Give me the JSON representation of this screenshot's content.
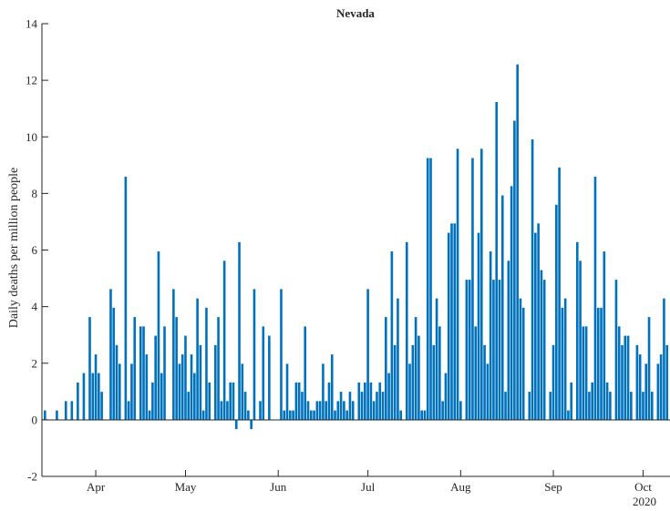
{
  "chart_data": {
    "type": "bar",
    "title": "Nevada",
    "xlabel": "",
    "ylabel": "Daily deaths per million people",
    "ylim": [
      -2,
      14
    ],
    "yticks": [
      -2,
      0,
      2,
      4,
      6,
      8,
      10,
      12,
      14
    ],
    "x_start": "2020-03-14",
    "x_end": "2020-10-10",
    "xticks": [
      {
        "date": "2020-04-01",
        "label": "Apr"
      },
      {
        "date": "2020-05-01",
        "label": "May"
      },
      {
        "date": "2020-06-01",
        "label": "Jun"
      },
      {
        "date": "2020-07-01",
        "label": "Jul"
      },
      {
        "date": "2020-08-01",
        "label": "Aug"
      },
      {
        "date": "2020-09-01",
        "label": "Sep"
      },
      {
        "date": "2020-10-01",
        "label": "Oct"
      }
    ],
    "year_label": "2020",
    "grid": false,
    "bar_color": "#0072BD",
    "first_date": "2020-03-15",
    "values": [
      0.33,
      0,
      0,
      0,
      0.33,
      0,
      0,
      0.66,
      0,
      0.66,
      0,
      1.32,
      0,
      1.65,
      0,
      3.63,
      1.65,
      2.31,
      1.65,
      0.99,
      0,
      0,
      4.62,
      3.96,
      2.64,
      1.98,
      0,
      8.59,
      0.66,
      1.98,
      3.63,
      0,
      3.3,
      3.3,
      2.31,
      0.33,
      1.32,
      2.97,
      5.95,
      1.65,
      3.3,
      0,
      0,
      4.62,
      3.63,
      1.98,
      2.31,
      2.97,
      0.99,
      2.31,
      1.65,
      4.29,
      2.64,
      0.33,
      3.96,
      1.32,
      0,
      2.64,
      3.63,
      0.66,
      5.62,
      0.66,
      1.32,
      1.32,
      -0.33,
      6.28,
      1.98,
      0.99,
      0.33,
      -0.33,
      4.62,
      0,
      0.66,
      3.3,
      0,
      2.97,
      0,
      0,
      0,
      4.62,
      0.33,
      1.98,
      0.33,
      0.33,
      1.32,
      1.32,
      0.99,
      3.3,
      0.66,
      0.33,
      0.33,
      0.66,
      0.66,
      1.98,
      0.66,
      1.32,
      2.31,
      0.33,
      0.66,
      0.99,
      0.66,
      0.33,
      0.99,
      0.66,
      0,
      1.32,
      0.99,
      1.32,
      4.62,
      1.32,
      0.66,
      0.99,
      1.32,
      0.99,
      3.63,
      1.65,
      5.95,
      2.64,
      4.29,
      0.33,
      0,
      6.28,
      1.98,
      2.64,
      3.63,
      2.97,
      0.33,
      0.33,
      9.25,
      9.25,
      2.64,
      4.29,
      3.3,
      0.66,
      1.65,
      6.61,
      6.94,
      6.94,
      9.58,
      0.66,
      0,
      4.95,
      4.95,
      9.25,
      3.3,
      6.61,
      9.58,
      2.64,
      1.98,
      5.95,
      4.95,
      11.23,
      4.95,
      7.93,
      0.99,
      5.62,
      8.26,
      10.57,
      12.56,
      4.29,
      3.96,
      0,
      0.99,
      9.91,
      6.61,
      6.94,
      5.29,
      4.95,
      0,
      0.99,
      2.64,
      7.6,
      8.92,
      3.96,
      4.29,
      0.33,
      1.32,
      0,
      6.28,
      5.62,
      3.3,
      3.3,
      0.99,
      1.32,
      8.59,
      3.96,
      3.96,
      5.95,
      1.32,
      0.99,
      0,
      4.95,
      3.3,
      2.64,
      2.97,
      2.97,
      0.99,
      0,
      2.64,
      2.31,
      0.99,
      1.98,
      3.63,
      0.99,
      0,
      1.98,
      2.31,
      4.29,
      2.64
    ]
  }
}
